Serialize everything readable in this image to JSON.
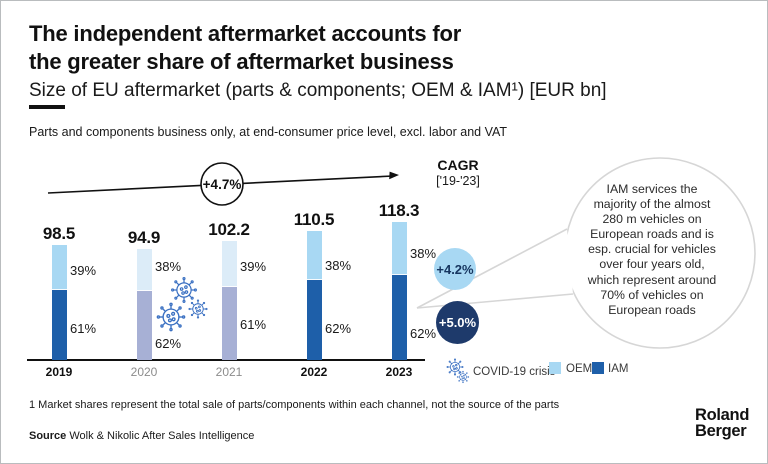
{
  "header": {
    "title_line1": "The independent aftermarket accounts for",
    "title_line2": "the greater share of aftermarket business",
    "subtitle": "Size of EU aftermarket (parts & components; OEM & IAM¹) [EUR bn]",
    "note": "Parts and components business only, at end-consumer price level, excl. labor and VAT"
  },
  "chart_data": {
    "type": "bar",
    "stacked": true,
    "unit": "EUR bn",
    "title": "Size of EU aftermarket (parts & components; OEM & IAM) [EUR bn]",
    "categories": [
      "2019",
      "2020",
      "2021",
      "2022",
      "2023"
    ],
    "totals": [
      98.5,
      94.9,
      102.2,
      110.5,
      118.3
    ],
    "totals_display": [
      "98.5",
      "94.9",
      "102.2",
      "110.5",
      "118.3"
    ],
    "series": [
      {
        "name": "IAM",
        "shares_pct": [
          61,
          62,
          61,
          62,
          62
        ],
        "labels": [
          "61%",
          "62%",
          "61%",
          "62%",
          "62%"
        ],
        "color": "#1e5fa9",
        "muted_color": "#a7b0d5"
      },
      {
        "name": "OEM",
        "shares_pct": [
          39,
          38,
          39,
          38,
          38
        ],
        "labels": [
          "39%",
          "38%",
          "39%",
          "38%",
          "38%"
        ],
        "color": "#a8d8f3",
        "muted_color": "#dcecf8"
      }
    ],
    "covid_years": [
      "2020",
      "2021"
    ],
    "annotations": {
      "overall_cagr": "+4.7%",
      "cagr_heading": "CAGR",
      "cagr_period": "['19-'23]",
      "cagr_oem": "+4.2%",
      "cagr_iam": "+5.0%"
    },
    "ylim": [
      0,
      130
    ],
    "grid": false,
    "legend_position": "bottom"
  },
  "bubble": {
    "text": "IAM services the\nmajority of the almost\n280 m vehicles on\nEuropean roads and is\nesp. crucial for vehicles\nover four years old,\nwhich represent around\n70% of vehicles on\nEuropean roads"
  },
  "legend": {
    "covid": "COVID-19 crisis",
    "oem": "OEM",
    "iam": "IAM"
  },
  "footer": {
    "footnote": "1 Market shares represent the total sale of parts/components within each channel, not the source of the parts",
    "source_label": "Source",
    "source_text": "Wolk & Nikolic After Sales Intelligence"
  },
  "brand": {
    "logo_line1": "Roland",
    "logo_line2": "Berger"
  },
  "colors": {
    "iam": "#1e5fa9",
    "oem": "#a8d8f3",
    "iam_muted": "#a7b0d5",
    "oem_muted": "#dcecf8",
    "cagr_iam_bubble": "#1e3a6b",
    "virus_blue": "#3a70c2",
    "bubble_border": "#d6d6d6"
  }
}
